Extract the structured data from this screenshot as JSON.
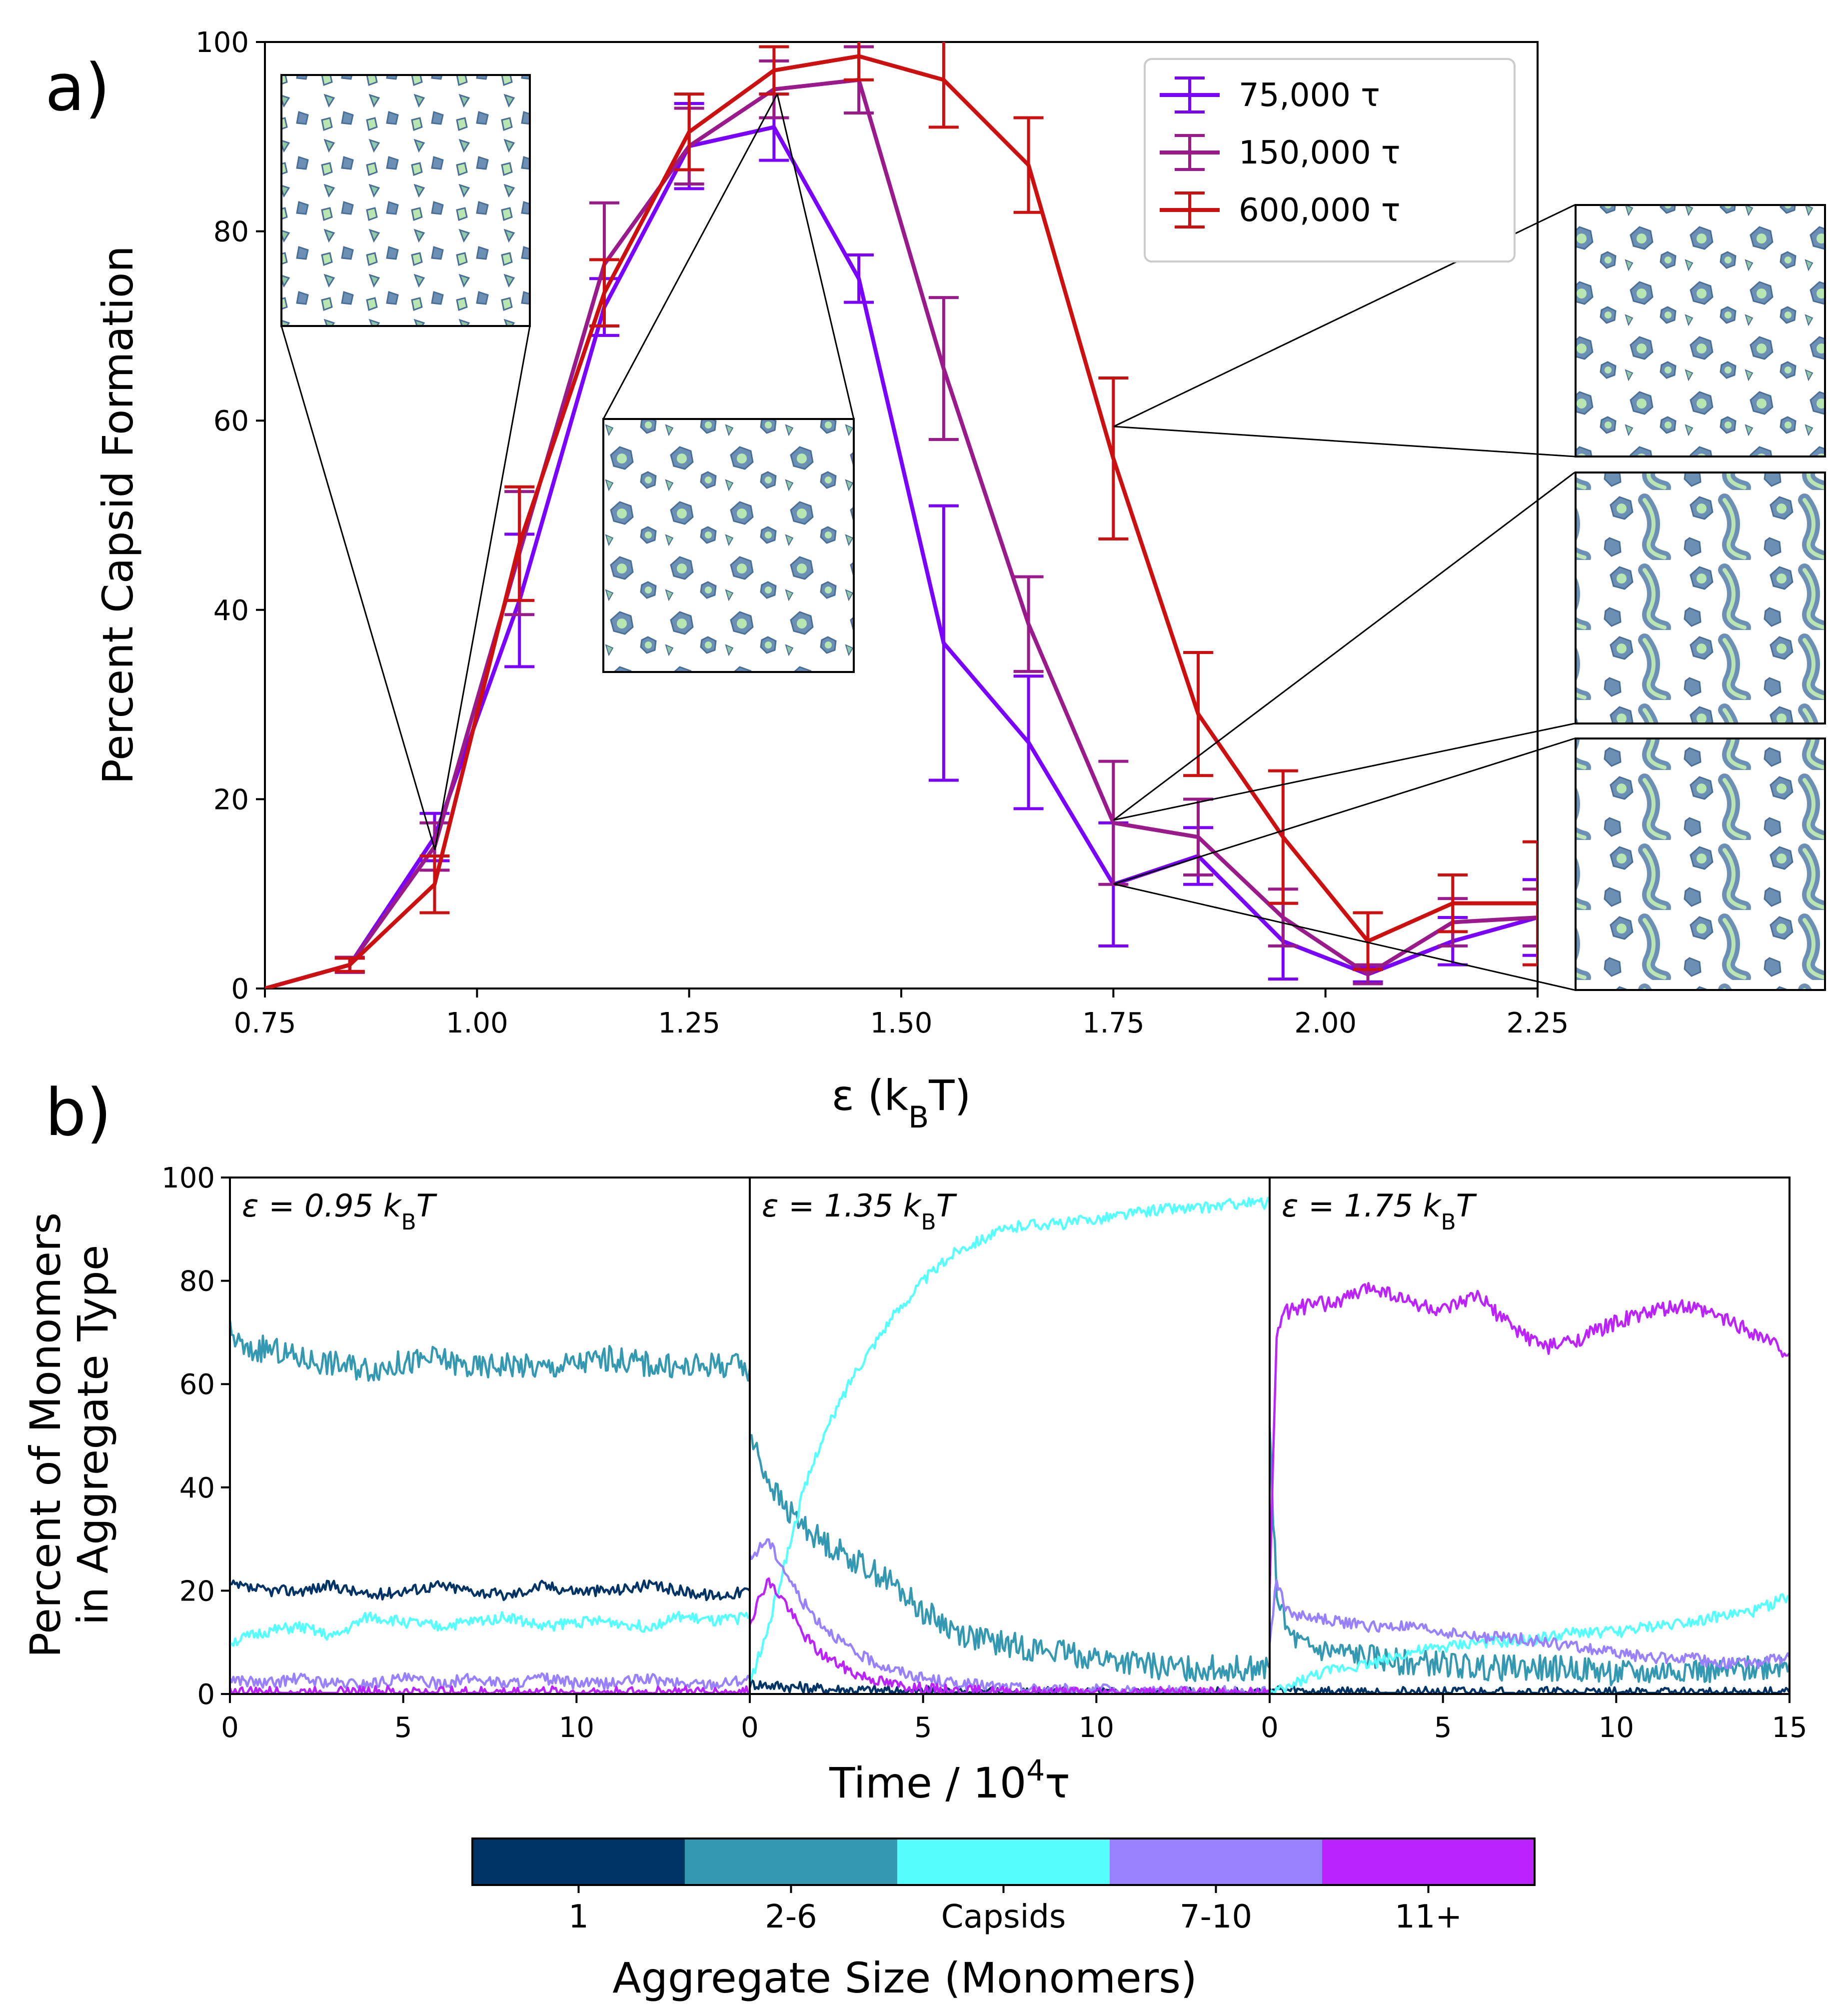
{
  "chart_data": [
    {
      "type": "line",
      "panel_label": "a)",
      "xlabel": "ε (k",
      "xlabel_sub": "B",
      "xlabel_tail": "T)",
      "ylabel": "Percent Capsid Formation",
      "xlim": [
        0.75,
        2.25
      ],
      "ylim": [
        0,
        100
      ],
      "xticks": [
        0.75,
        1.0,
        1.25,
        1.5,
        1.75,
        2.0,
        2.25
      ],
      "xtick_labels": [
        "0.75",
        "1.00",
        "1.25",
        "1.50",
        "1.75",
        "2.00",
        "2.25"
      ],
      "yticks": [
        0,
        20,
        40,
        60,
        80,
        100
      ],
      "ytick_labels": [
        "0",
        "20",
        "40",
        "60",
        "80",
        "100"
      ],
      "x": [
        0.75,
        0.85,
        0.95,
        1.05,
        1.15,
        1.25,
        1.35,
        1.45,
        1.55,
        1.65,
        1.75,
        1.85,
        1.95,
        2.05,
        2.15,
        2.25
      ],
      "series": [
        {
          "name": "75,000 τ",
          "color": "#7a00ff",
          "values": [
            0,
            2.5,
            16,
            41,
            72,
            89,
            91,
            75,
            36.5,
            26,
            11,
            14,
            5,
            1.5,
            5,
            7.5
          ],
          "errors": [
            0,
            0.7,
            2.5,
            7,
            3,
            4.5,
            3.5,
            2.5,
            14.5,
            7,
            6.5,
            3,
            4,
            0.8,
            2.5,
            4
          ]
        },
        {
          "name": "150,000 τ",
          "color": "#9a1a8c",
          "values": [
            0,
            2.5,
            15,
            46,
            76.5,
            89,
            95,
            96,
            65.5,
            38.5,
            17.5,
            16,
            7.5,
            1.5,
            7,
            7.5
          ],
          "errors": [
            0,
            0.8,
            2.5,
            6.5,
            6.5,
            4,
            3,
            3.5,
            7.5,
            5,
            6.5,
            4,
            3,
            1,
            2.5,
            3
          ]
        },
        {
          "name": "600,000 τ",
          "color": "#cc0f0f",
          "values": [
            0,
            2.5,
            11,
            47,
            73.5,
            90.5,
            97,
            98.5,
            96,
            87,
            56,
            29,
            16,
            5,
            9,
            9
          ],
          "errors": [
            0,
            0.7,
            3,
            6,
            3.5,
            4,
            2.5,
            2.5,
            5,
            5,
            8.5,
            6.5,
            7,
            3,
            3,
            6.5
          ]
        }
      ],
      "legend_position": "top-right"
    },
    {
      "type": "line",
      "panel_label": "b)",
      "ylabel_line1": "Percent of Monomers",
      "ylabel_line2": "in Aggregate Type",
      "xlabel": "Time / 10",
      "xlabel_sup": "4",
      "xlabel_tail": "τ",
      "ylim": [
        0,
        100
      ],
      "xlim": [
        0,
        15
      ],
      "yticks": [
        0,
        20,
        40,
        60,
        80,
        100
      ],
      "ytick_labels": [
        "0",
        "20",
        "40",
        "60",
        "80",
        "100"
      ],
      "xticks": [
        0,
        5,
        10
      ],
      "xtick_labels": [
        "0",
        "5",
        "10"
      ],
      "last_xtick_label": "15",
      "subplots": [
        {
          "annotation": "ε = 0.95 k",
          "annotation_sub": "B",
          "annotation_tail": "T",
          "series": [
            {
              "name": "1",
              "color": "#003366",
              "x": [
                0,
                1,
                2,
                3,
                4,
                5,
                6,
                7,
                8,
                9,
                10,
                11,
                12,
                13,
                14,
                15
              ],
              "values": [
                21,
                20,
                20,
                21,
                19,
                20,
                21,
                20,
                19,
                21,
                20,
                20,
                21,
                20,
                19,
                20
              ]
            },
            {
              "name": "2-6",
              "color": "#3399b3",
              "x": [
                0,
                0.5,
                1,
                2,
                3,
                4,
                5,
                6,
                7,
                8,
                9,
                10,
                11,
                12,
                13,
                14,
                15
              ],
              "values": [
                70,
                66,
                67,
                65,
                64,
                63,
                64,
                65,
                63,
                64,
                63,
                64,
                65,
                64,
                63,
                64,
                63
              ]
            },
            {
              "name": "Capsids",
              "color": "#55ffff",
              "x": [
                0,
                1,
                2,
                3,
                4,
                5,
                6,
                7,
                8,
                9,
                10,
                11,
                12,
                13,
                14,
                15
              ],
              "values": [
                10,
                12,
                13,
                11,
                15,
                14,
                13,
                14,
                15,
                13,
                14,
                14,
                13,
                15,
                14,
                15
              ]
            },
            {
              "name": "7-10",
              "color": "#9980ff",
              "x": [
                0,
                1,
                2,
                3,
                4,
                5,
                6,
                7,
                8,
                9,
                10,
                11,
                12,
                13,
                14,
                15
              ],
              "values": [
                3,
                2,
                3,
                2,
                2,
                3,
                2,
                3,
                2,
                3,
                2,
                2,
                3,
                2,
                2,
                3
              ]
            },
            {
              "name": "11+",
              "color": "#bb22ff",
              "x": [
                0,
                1,
                2,
                3,
                4,
                5,
                6,
                7,
                8,
                9,
                10,
                11,
                12,
                13,
                14,
                15
              ],
              "values": [
                0.5,
                0.3,
                0.4,
                0.3,
                0.5,
                0.3,
                0.4,
                0.3,
                0.3,
                0.5,
                0.3,
                0.4,
                0.3,
                0.4,
                0.3,
                0.4
              ]
            }
          ]
        },
        {
          "annotation": "ε = 1.35 k",
          "annotation_sub": "B",
          "annotation_tail": "T",
          "series": [
            {
              "name": "1",
              "color": "#003366",
              "x": [
                0,
                1,
                2,
                3,
                4,
                5,
                6,
                8,
                10,
                12,
                15
              ],
              "values": [
                2,
                1.5,
                1,
                0.8,
                0.6,
                0.5,
                0.4,
                0.3,
                0.3,
                0.2,
                0.2
              ]
            },
            {
              "name": "2-6",
              "color": "#3399b3",
              "x": [
                0,
                0.5,
                1,
                2,
                3,
                4,
                5,
                6,
                7,
                8,
                9,
                10,
                11,
                12,
                13,
                14,
                15
              ],
              "values": [
                50,
                42,
                36,
                30,
                26,
                22,
                16,
                12,
                10,
                9,
                8,
                7,
                6,
                5,
                5,
                5,
                5
              ]
            },
            {
              "name": "Capsids",
              "color": "#55ffff",
              "x": [
                0,
                0.5,
                1,
                1.5,
                2,
                3,
                4,
                5,
                6,
                7,
                8,
                9,
                10,
                11,
                12,
                13,
                14,
                15
              ],
              "values": [
                2,
                12,
                25,
                38,
                48,
                62,
                72,
                80,
                86,
                89,
                91,
                91,
                92,
                93,
                94,
                94,
                95,
                95
              ]
            },
            {
              "name": "7-10",
              "color": "#9980ff",
              "x": [
                0,
                0.5,
                1,
                1.5,
                2,
                3,
                4,
                5,
                6,
                7,
                8,
                10,
                12,
                15
              ],
              "values": [
                26,
                30,
                24,
                18,
                14,
                8,
                5,
                3,
                2,
                1.5,
                1,
                0.8,
                0.5,
                0.4
              ]
            },
            {
              "name": "11+",
              "color": "#bb22ff",
              "x": [
                0,
                0.5,
                1,
                1.5,
                2,
                3,
                4,
                5,
                6,
                8,
                10,
                15
              ],
              "values": [
                14,
                22,
                18,
                12,
                8,
                4,
                2,
                1,
                0.6,
                0.4,
                0.3,
                0.2
              ]
            }
          ]
        },
        {
          "annotation": "ε = 1.75 k",
          "annotation_sub": "B",
          "annotation_tail": "T",
          "series": [
            {
              "name": "1",
              "color": "#003366",
              "x": [
                0,
                0.5,
                1,
                2,
                4,
                6,
                8,
                10,
                12,
                15
              ],
              "values": [
                1,
                0.6,
                0.5,
                0.4,
                0.3,
                0.3,
                0.3,
                0.2,
                0.2,
                0.2
              ]
            },
            {
              "name": "2-6",
              "color": "#3399b3",
              "x": [
                0,
                0.2,
                0.5,
                1,
                2,
                3,
                4,
                5,
                6,
                7,
                8,
                9,
                10,
                11,
                12,
                13,
                14,
                15
              ],
              "values": [
                50,
                20,
                12,
                9,
                8,
                7,
                6,
                6,
                5,
                5,
                5,
                5,
                4,
                4,
                5,
                4,
                5,
                6
              ]
            },
            {
              "name": "Capsids",
              "color": "#55ffff",
              "x": [
                0,
                0.5,
                1,
                2,
                3,
                4,
                5,
                6,
                7,
                8,
                9,
                10,
                11,
                12,
                13,
                14,
                15
              ],
              "values": [
                0,
                1,
                3,
                5,
                6,
                8,
                9,
                10,
                10,
                11,
                12,
                12,
                13,
                14,
                15,
                16,
                19
              ]
            },
            {
              "name": "7-10",
              "color": "#9980ff",
              "x": [
                0,
                0.2,
                0.5,
                1,
                2,
                3,
                4,
                5,
                6,
                7,
                8,
                9,
                10,
                11,
                12,
                13,
                14,
                15
              ],
              "values": [
                10,
                22,
                16,
                15,
                14,
                13,
                13,
                12,
                11,
                11,
                10,
                9,
                8,
                7,
                7,
                6,
                6,
                7
              ]
            },
            {
              "name": "11+",
              "color": "#bb22ff",
              "x": [
                0,
                0.2,
                0.5,
                1,
                2,
                3,
                4,
                5,
                6,
                7,
                8,
                9,
                10,
                11,
                12,
                13,
                14,
                15
              ],
              "values": [
                20,
                70,
                74,
                75,
                76,
                79,
                76,
                74,
                77,
                71,
                67,
                69,
                72,
                74,
                75,
                73,
                70,
                66
              ]
            }
          ]
        }
      ],
      "colorbar": {
        "title": "Aggregate Size (Monomers)",
        "entries": [
          {
            "label": "1",
            "color": "#003366"
          },
          {
            "label": "2-6",
            "color": "#3399b3"
          },
          {
            "label": "Capsids",
            "color": "#55ffff"
          },
          {
            "label": "7-10",
            "color": "#9980ff"
          },
          {
            "label": "11+",
            "color": "#bb22ff"
          }
        ]
      }
    }
  ]
}
